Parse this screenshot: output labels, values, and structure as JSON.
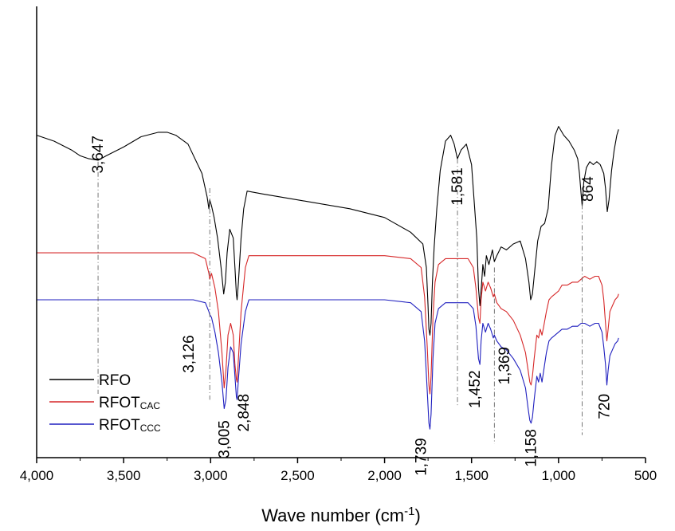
{
  "chart_data": {
    "type": "line",
    "title": "",
    "xlabel": "Wave number (cm",
    "xlabel_sup": "-1",
    "xlabel_tail": ")",
    "ylabel": "",
    "xlim": [
      4000,
      650
    ],
    "x_reversed": true,
    "yaxis_ticks": false,
    "ylim": [
      -0.95,
      0.33
    ],
    "grid": false,
    "legend_position": "bottom-left",
    "x_ticks": [
      4000,
      3500,
      3000,
      2500,
      2000,
      1500,
      1000,
      500
    ],
    "x_tick_labels": [
      "4,000",
      "3,500",
      "3,000",
      "2,500",
      "2,000",
      "1,500",
      "1,000",
      "500"
    ],
    "series": [
      {
        "name": "RFO",
        "name_sub": "",
        "color": "#000000",
        "x": [
          4000,
          3900,
          3800,
          3750,
          3700,
          3647,
          3600,
          3500,
          3400,
          3300,
          3250,
          3200,
          3130,
          3050,
          3020,
          3010,
          3005,
          2995,
          2980,
          2960,
          2940,
          2925,
          2915,
          2905,
          2890,
          2870,
          2860,
          2852,
          2848,
          2840,
          2825,
          2810,
          2790,
          2700,
          2500,
          2200,
          2000,
          1850,
          1780,
          1760,
          1750,
          1745,
          1739,
          1733,
          1725,
          1715,
          1700,
          1680,
          1650,
          1620,
          1600,
          1581,
          1560,
          1530,
          1500,
          1470,
          1460,
          1452,
          1444,
          1435,
          1425,
          1415,
          1400,
          1380,
          1369,
          1355,
          1330,
          1300,
          1260,
          1220,
          1190,
          1170,
          1160,
          1150,
          1140,
          1120,
          1100,
          1080,
          1060,
          1040,
          1020,
          1000,
          970,
          940,
          910,
          890,
          880,
          870,
          864,
          855,
          840,
          820,
          800,
          780,
          760,
          740,
          730,
          720,
          710,
          695,
          680,
          665,
          655
        ],
        "y": [
          0,
          -0.02,
          -0.05,
          -0.07,
          -0.08,
          -0.085,
          -0.07,
          -0.04,
          -0.005,
          0.01,
          0.01,
          0.0,
          -0.03,
          -0.13,
          -0.21,
          -0.25,
          -0.22,
          -0.24,
          -0.28,
          -0.35,
          -0.45,
          -0.54,
          -0.5,
          -0.4,
          -0.32,
          -0.35,
          -0.45,
          -0.54,
          -0.56,
          -0.5,
          -0.35,
          -0.25,
          -0.19,
          -0.2,
          -0.22,
          -0.25,
          -0.28,
          -0.33,
          -0.37,
          -0.45,
          -0.58,
          -0.66,
          -0.68,
          -0.64,
          -0.5,
          -0.38,
          -0.25,
          -0.12,
          -0.02,
          0.0,
          -0.03,
          -0.08,
          -0.05,
          -0.03,
          -0.1,
          -0.35,
          -0.52,
          -0.58,
          -0.52,
          -0.44,
          -0.48,
          -0.41,
          -0.44,
          -0.39,
          -0.43,
          -0.41,
          -0.38,
          -0.39,
          -0.37,
          -0.36,
          -0.42,
          -0.5,
          -0.56,
          -0.54,
          -0.48,
          -0.36,
          -0.31,
          -0.3,
          -0.25,
          -0.1,
          0.0,
          0.03,
          0.0,
          -0.02,
          -0.05,
          -0.08,
          -0.13,
          -0.2,
          -0.24,
          -0.16,
          -0.11,
          -0.09,
          -0.1,
          -0.09,
          -0.1,
          -0.13,
          -0.18,
          -0.26,
          -0.22,
          -0.12,
          -0.05,
          0.0,
          0.02
        ]
      },
      {
        "name": "RFOT",
        "name_sub": "CAC",
        "color": "#d62728",
        "x": [
          4000,
          3500,
          3100,
          3030,
          3010,
          3005,
          2995,
          2975,
          2955,
          2935,
          2922,
          2912,
          2900,
          2885,
          2870,
          2860,
          2852,
          2848,
          2840,
          2825,
          2800,
          2780,
          2500,
          2000,
          1850,
          1790,
          1770,
          1755,
          1745,
          1739,
          1733,
          1722,
          1710,
          1690,
          1650,
          1600,
          1520,
          1490,
          1475,
          1460,
          1452,
          1445,
          1435,
          1420,
          1405,
          1390,
          1375,
          1369,
          1355,
          1330,
          1300,
          1260,
          1220,
          1190,
          1175,
          1165,
          1158,
          1150,
          1140,
          1125,
          1115,
          1105,
          1095,
          1085,
          1070,
          1055,
          1040,
          1020,
          1000,
          980,
          950,
          920,
          890,
          870,
          850,
          820,
          790,
          770,
          750,
          740,
          730,
          722,
          715,
          705,
          690,
          675,
          660,
          655
        ],
        "y": [
          -0.4,
          -0.4,
          -0.4,
          -0.42,
          -0.47,
          -0.49,
          -0.47,
          -0.52,
          -0.6,
          -0.74,
          -0.86,
          -0.8,
          -0.68,
          -0.64,
          -0.68,
          -0.78,
          -0.83,
          -0.84,
          -0.76,
          -0.6,
          -0.45,
          -0.41,
          -0.41,
          -0.41,
          -0.42,
          -0.45,
          -0.55,
          -0.72,
          -0.85,
          -0.88,
          -0.82,
          -0.62,
          -0.5,
          -0.44,
          -0.42,
          -0.42,
          -0.42,
          -0.45,
          -0.52,
          -0.62,
          -0.64,
          -0.56,
          -0.5,
          -0.53,
          -0.5,
          -0.52,
          -0.55,
          -0.54,
          -0.57,
          -0.59,
          -0.6,
          -0.63,
          -0.68,
          -0.74,
          -0.8,
          -0.84,
          -0.85,
          -0.82,
          -0.76,
          -0.68,
          -0.69,
          -0.66,
          -0.68,
          -0.65,
          -0.6,
          -0.56,
          -0.55,
          -0.54,
          -0.53,
          -0.51,
          -0.51,
          -0.5,
          -0.5,
          -0.49,
          -0.48,
          -0.49,
          -0.48,
          -0.48,
          -0.51,
          -0.56,
          -0.64,
          -0.7,
          -0.66,
          -0.6,
          -0.58,
          -0.56,
          -0.55,
          -0.54
        ]
      },
      {
        "name": "RFOT",
        "name_sub": "CCC",
        "color": "#1f1fbf",
        "x": [
          4000,
          3500,
          3100,
          3030,
          3010,
          3005,
          2995,
          2975,
          2955,
          2935,
          2922,
          2912,
          2900,
          2885,
          2870,
          2860,
          2852,
          2848,
          2840,
          2825,
          2800,
          2780,
          2500,
          2000,
          1850,
          1790,
          1770,
          1755,
          1745,
          1739,
          1733,
          1722,
          1710,
          1690,
          1650,
          1600,
          1520,
          1490,
          1475,
          1460,
          1452,
          1445,
          1435,
          1420,
          1405,
          1390,
          1375,
          1369,
          1355,
          1330,
          1300,
          1260,
          1220,
          1190,
          1175,
          1165,
          1158,
          1150,
          1140,
          1125,
          1115,
          1105,
          1095,
          1085,
          1070,
          1055,
          1040,
          1020,
          1000,
          980,
          950,
          920,
          890,
          870,
          850,
          820,
          790,
          770,
          750,
          740,
          730,
          722,
          715,
          705,
          690,
          675,
          660,
          655
        ],
        "y": [
          -0.56,
          -0.56,
          -0.56,
          -0.57,
          -0.6,
          -0.61,
          -0.62,
          -0.67,
          -0.74,
          -0.84,
          -0.93,
          -0.9,
          -0.79,
          -0.72,
          -0.74,
          -0.82,
          -0.89,
          -0.9,
          -0.83,
          -0.71,
          -0.6,
          -0.56,
          -0.56,
          -0.56,
          -0.57,
          -0.6,
          -0.7,
          -0.87,
          -0.98,
          -1.0,
          -0.95,
          -0.76,
          -0.64,
          -0.59,
          -0.57,
          -0.57,
          -0.57,
          -0.59,
          -0.65,
          -0.76,
          -0.78,
          -0.7,
          -0.64,
          -0.67,
          -0.64,
          -0.66,
          -0.69,
          -0.68,
          -0.7,
          -0.72,
          -0.73,
          -0.76,
          -0.8,
          -0.86,
          -0.93,
          -0.97,
          -0.98,
          -0.96,
          -0.9,
          -0.82,
          -0.84,
          -0.81,
          -0.84,
          -0.8,
          -0.74,
          -0.7,
          -0.69,
          -0.68,
          -0.67,
          -0.66,
          -0.66,
          -0.65,
          -0.65,
          -0.64,
          -0.64,
          -0.65,
          -0.64,
          -0.64,
          -0.67,
          -0.72,
          -0.78,
          -0.85,
          -0.8,
          -0.75,
          -0.73,
          -0.71,
          -0.7,
          -0.69
        ]
      }
    ],
    "annotations": [
      {
        "text": "3,647",
        "x": 3647,
        "line_from": -0.09,
        "line_to": -0.88,
        "label_y": -0.13,
        "anchor": "start"
      },
      {
        "text": "3,126",
        "x": 3005,
        "line_from": -0.18,
        "line_to": -0.9,
        "label_y": -0.68,
        "anchor": "end",
        "label_x": 3126
      },
      {
        "text": "3,005",
        "x": 2922,
        "line_from": null,
        "line_to": null,
        "label_y": -0.97,
        "anchor": "end"
      },
      {
        "text": "2,848",
        "x": 2848,
        "line_from": null,
        "line_to": null,
        "label_y": -0.88,
        "anchor": "end",
        "label_x": 2810
      },
      {
        "text": "1,739",
        "x": 1739,
        "line_from": null,
        "line_to": null,
        "label_y": -1.03,
        "anchor": "end",
        "label_x": 1790
      },
      {
        "text": "1,581",
        "x": 1581,
        "line_from": -0.08,
        "line_to": -0.92,
        "label_y": -0.11,
        "anchor": "end"
      },
      {
        "text": "1,452",
        "x": 1452,
        "line_from": null,
        "line_to": null,
        "label_y": -0.8,
        "anchor": "end",
        "label_x": 1480
      },
      {
        "text": "1,369",
        "x": 1369,
        "line_from": -0.45,
        "line_to": -1.05,
        "label_y": -0.72,
        "anchor": "end",
        "label_x": 1310
      },
      {
        "text": "1,158",
        "x": 1158,
        "line_from": null,
        "line_to": null,
        "label_y": -1.0,
        "anchor": "end"
      },
      {
        "text": "864",
        "x": 864,
        "line_from": -0.2,
        "line_to": -1.02,
        "label_y": -0.14,
        "anchor": "end",
        "label_x": 830
      },
      {
        "text": "720",
        "x": 720,
        "line_from": null,
        "line_to": null,
        "label_y": -0.88,
        "anchor": "end",
        "label_x": 735
      }
    ]
  }
}
